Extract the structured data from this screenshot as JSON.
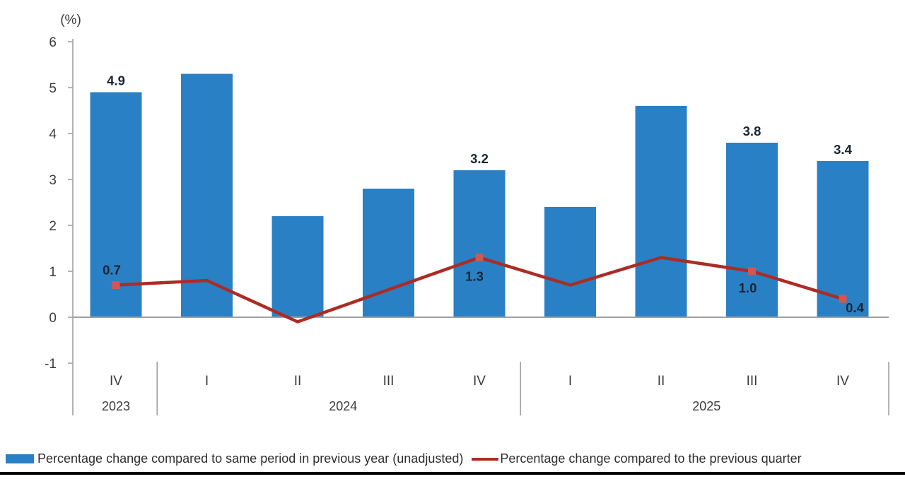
{
  "chart_data": {
    "type": "bar+line combo",
    "unit_label": "(%)",
    "categories": [
      "IV",
      "I",
      "II",
      "III",
      "IV",
      "I",
      "II",
      "III",
      "IV"
    ],
    "year_groups": [
      {
        "label": "2023",
        "quarters": 1
      },
      {
        "label": "2024",
        "quarters": 4
      },
      {
        "label": "2025",
        "quarters": 4
      }
    ],
    "y_axis": {
      "ticks": [
        6,
        5,
        4,
        3,
        2,
        1,
        0,
        -1
      ],
      "min": -1,
      "max": 6,
      "grid": false
    },
    "series": [
      {
        "name": "Percentage change compared to same period in previous year (unadjusted)",
        "type": "bar",
        "color": "#2a80c4",
        "values": [
          4.9,
          5.3,
          2.2,
          2.8,
          3.2,
          2.4,
          4.6,
          3.8,
          3.4
        ],
        "labels": [
          "4.9",
          null,
          null,
          null,
          "3.2",
          null,
          null,
          "3.8",
          "3.4"
        ]
      },
      {
        "name": "Percentage change compared to the previous quarter",
        "type": "line",
        "color": "#ab2c26",
        "marker_color": "#d0584e",
        "values": [
          0.7,
          0.8,
          -0.1,
          0.6,
          1.3,
          0.7,
          1.3,
          1.0,
          0.4
        ],
        "labels": [
          "0.7",
          null,
          null,
          null,
          "1.3",
          null,
          null,
          "1.0",
          "0.4"
        ]
      }
    ],
    "legend_position": "bottom",
    "label_color": "#1a2433",
    "axis_color": "#a0a0a0",
    "tick_text_color": "#3c3c3c"
  }
}
